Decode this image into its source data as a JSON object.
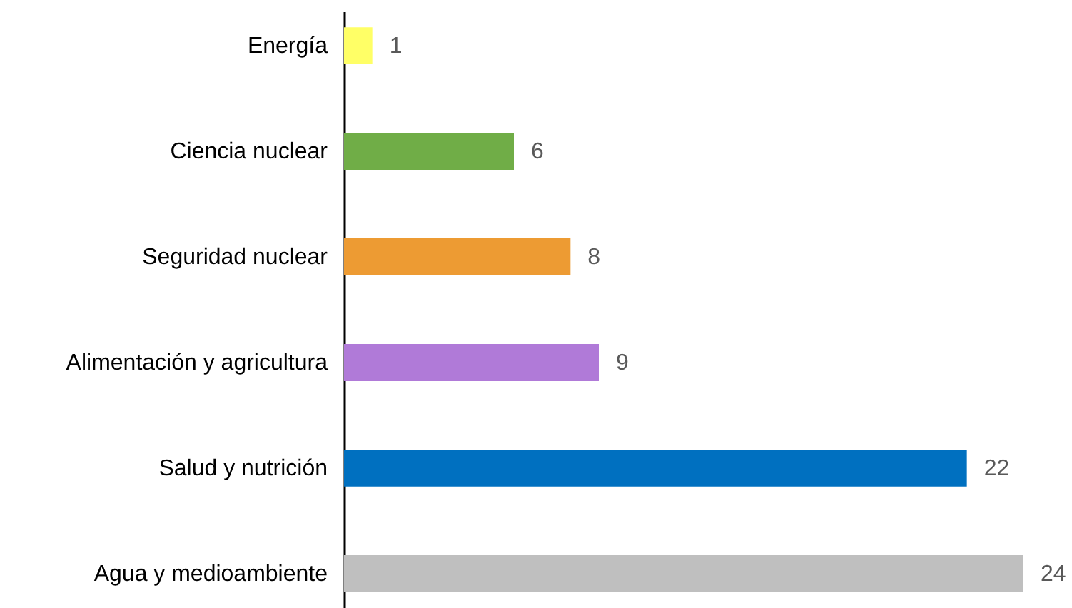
{
  "chart_data": {
    "type": "bar",
    "orientation": "horizontal",
    "categories": [
      "Energía",
      "Ciencia nuclear",
      "Seguridad nuclear",
      "Alimentación y agricultura",
      "Salud y nutrición",
      "Agua y medioambiente"
    ],
    "values": [
      1,
      6,
      8,
      9,
      22,
      24
    ],
    "colors": [
      "#ffff66",
      "#70ad47",
      "#ed9b33",
      "#b07ad8",
      "#0070c0",
      "#bfbfbf"
    ],
    "data_labels": true
  }
}
